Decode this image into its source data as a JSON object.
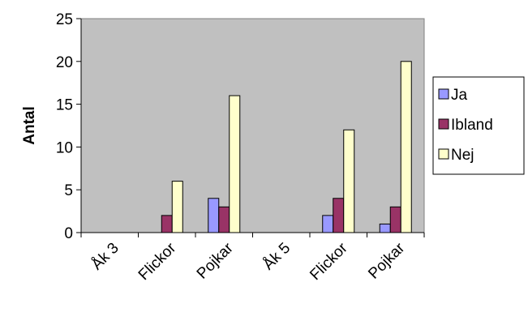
{
  "chart_data": {
    "type": "bar",
    "title": "",
    "xlabel": "",
    "ylabel": "Antal",
    "ylim": [
      0,
      25
    ],
    "yticks": [
      0,
      5,
      10,
      15,
      20,
      25
    ],
    "grid": false,
    "legend_position": "right",
    "categories": [
      "Åk 3",
      "Flickor",
      "Pojkar",
      "Åk 5",
      "Flickor",
      "Pojkar"
    ],
    "series": [
      {
        "name": "Ja",
        "color": "#9999ff",
        "values": [
          0,
          0,
          4,
          0,
          2,
          1
        ]
      },
      {
        "name": "Ibland",
        "color": "#993366",
        "values": [
          0,
          2,
          3,
          0,
          4,
          3
        ]
      },
      {
        "name": "Nej",
        "color": "#ffffcc",
        "values": [
          0,
          6,
          16,
          0,
          12,
          20
        ]
      }
    ],
    "plot_background": "#c0c0c0"
  }
}
